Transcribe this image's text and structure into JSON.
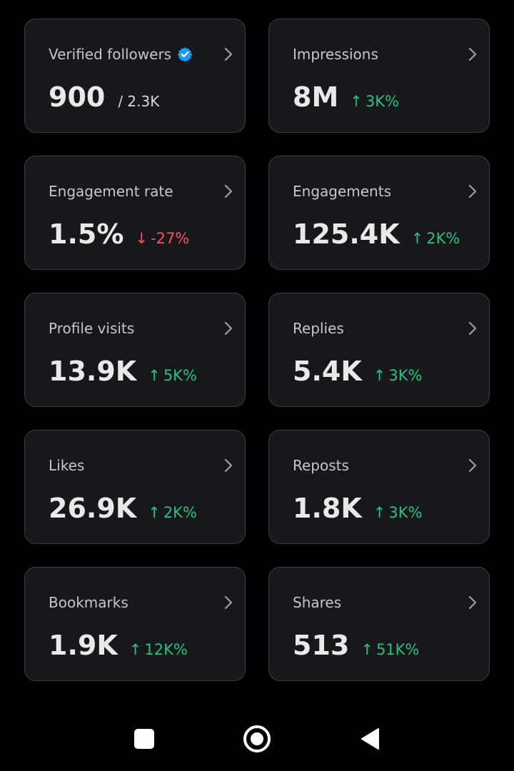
{
  "colors": {
    "background": "#000000",
    "card_background": "#16181c",
    "card_border": "#3a3d42",
    "positive": "#2fbf7d",
    "negative": "#f4515a",
    "verified_badge": "#1d9bf0"
  },
  "cards": [
    {
      "label": "Verified followers",
      "value": "900",
      "secondary": "/ 2.3K",
      "verified_icon": "verified-badge-icon",
      "chevron_icon": "chevron-right-icon"
    },
    {
      "label": "Impressions",
      "value": "8M",
      "change": "3K%",
      "direction": "up",
      "arrow": "↑",
      "chevron_icon": "chevron-right-icon"
    },
    {
      "label": "Engagement rate",
      "value": "1.5%",
      "change": "-27%",
      "direction": "down",
      "arrow": "↓",
      "chevron_icon": "chevron-right-icon"
    },
    {
      "label": "Engagements",
      "value": "125.4K",
      "change": "2K%",
      "direction": "up",
      "arrow": "↑",
      "chevron_icon": "chevron-right-icon"
    },
    {
      "label": "Profile visits",
      "value": "13.9K",
      "change": "5K%",
      "direction": "up",
      "arrow": "↑",
      "chevron_icon": "chevron-right-icon"
    },
    {
      "label": "Replies",
      "value": "5.4K",
      "change": "3K%",
      "direction": "up",
      "arrow": "↑",
      "chevron_icon": "chevron-right-icon"
    },
    {
      "label": "Likes",
      "value": "26.9K",
      "change": "2K%",
      "direction": "up",
      "arrow": "↑",
      "chevron_icon": "chevron-right-icon"
    },
    {
      "label": "Reposts",
      "value": "1.8K",
      "change": "3K%",
      "direction": "up",
      "arrow": "↑",
      "chevron_icon": "chevron-right-icon"
    },
    {
      "label": "Bookmarks",
      "value": "1.9K",
      "change": "12K%",
      "direction": "up",
      "arrow": "↑",
      "chevron_icon": "chevron-right-icon"
    },
    {
      "label": "Shares",
      "value": "513",
      "change": "51K%",
      "direction": "up",
      "arrow": "↑",
      "chevron_icon": "chevron-right-icon"
    }
  ],
  "navbar": {
    "recents_icon": "square-recents-icon",
    "home_icon": "circle-home-icon",
    "back_icon": "triangle-back-icon"
  }
}
